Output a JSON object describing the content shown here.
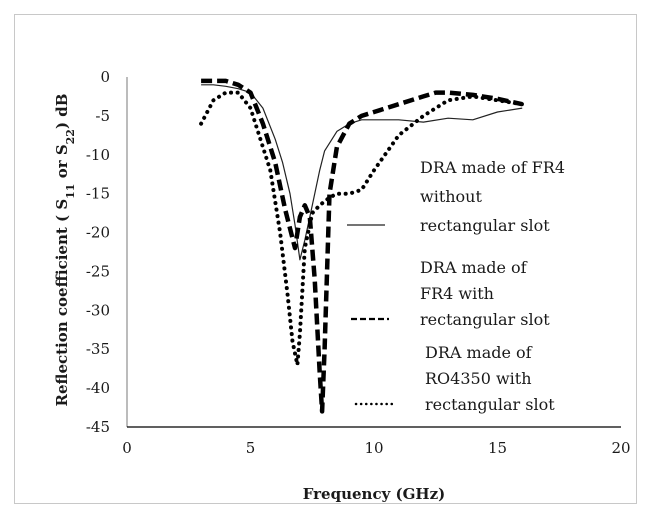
{
  "chart_data": {
    "type": "line",
    "title": "",
    "xlabel": "Frequency (GHz)",
    "ylabel_parts": [
      "Reflection coefficient ( S",
      "11",
      " or S",
      "22",
      ") dB"
    ],
    "xlim": [
      0,
      20
    ],
    "ylim": [
      -45,
      0
    ],
    "x_ticks": [
      "0",
      "5",
      "10",
      "15",
      "20"
    ],
    "y_ticks": [
      "0",
      "-5",
      "-10",
      "-15",
      "-20",
      "-25",
      "-30",
      "-35",
      "-40",
      "-45"
    ],
    "grid": false,
    "legend_placement": "right",
    "series": [
      {
        "name": "DRA made of FR4 without rectangular slot",
        "legend_lines": [
          "DRA made of FR4",
          "without",
          "rectangular slot"
        ],
        "style": "solid",
        "x": [
          3.0,
          3.5,
          4.0,
          4.5,
          5.0,
          5.5,
          6.0,
          6.3,
          6.6,
          6.8,
          7.0,
          7.2,
          7.5,
          7.8,
          8.0,
          8.5,
          9.0,
          9.5,
          10.0,
          11.0,
          12.0,
          13.0,
          14.0,
          15.0,
          16.0
        ],
        "y": [
          -1.0,
          -1.0,
          -1.2,
          -1.5,
          -2.0,
          -4.0,
          -8.0,
          -11.0,
          -15.0,
          -19.0,
          -23.5,
          -21.0,
          -16.5,
          -12.0,
          -9.5,
          -7.0,
          -6.0,
          -5.5,
          -5.5,
          -5.5,
          -5.8,
          -5.3,
          -5.5,
          -4.5,
          -4.0
        ]
      },
      {
        "name": "DRA made of FR4 with rectangular slot",
        "legend_lines": [
          "DRA made of",
          "FR4 with",
          "rectangular slot"
        ],
        "style": "dashed",
        "x": [
          3.0,
          3.5,
          4.0,
          4.5,
          5.0,
          5.5,
          6.0,
          6.4,
          6.8,
          7.0,
          7.2,
          7.4,
          7.6,
          7.8,
          7.9,
          8.0,
          8.2,
          8.5,
          9.0,
          9.5,
          10.0,
          11.0,
          12.0,
          12.5,
          13.0,
          14.0,
          15.0,
          16.0
        ],
        "y": [
          -0.5,
          -0.5,
          -0.5,
          -1.0,
          -2.0,
          -6.0,
          -11.0,
          -17.0,
          -22.0,
          -18.0,
          -16.5,
          -18.0,
          -26.0,
          -38.0,
          -43.0,
          -35.0,
          -15.0,
          -9.0,
          -6.0,
          -5.0,
          -4.5,
          -3.5,
          -2.5,
          -2.0,
          -2.0,
          -2.3,
          -2.8,
          -3.5
        ]
      },
      {
        "name": "DRA made of RO4350 with rectangular slot",
        "legend_lines": [
          "DRA made of",
          "RO4350 with",
          "rectangular slot"
        ],
        "style": "dotted",
        "x": [
          3.0,
          3.5,
          4.0,
          4.5,
          5.0,
          5.4,
          5.8,
          6.2,
          6.5,
          6.7,
          6.9,
          7.0,
          7.2,
          7.5,
          7.8,
          8.0,
          8.2,
          8.5,
          9.0,
          9.5,
          10.0,
          11.0,
          12.0,
          13.0,
          14.0,
          15.0,
          16.0
        ],
        "y": [
          -6.0,
          -3.0,
          -2.0,
          -2.0,
          -4.0,
          -8.0,
          -12.0,
          -20.0,
          -28.0,
          -34.0,
          -37.0,
          -33.0,
          -22.0,
          -17.5,
          -16.5,
          -16.0,
          -15.5,
          -15.0,
          -15.0,
          -14.5,
          -12.0,
          -7.5,
          -5.0,
          -3.0,
          -2.5,
          -3.0,
          -3.5
        ]
      }
    ]
  }
}
